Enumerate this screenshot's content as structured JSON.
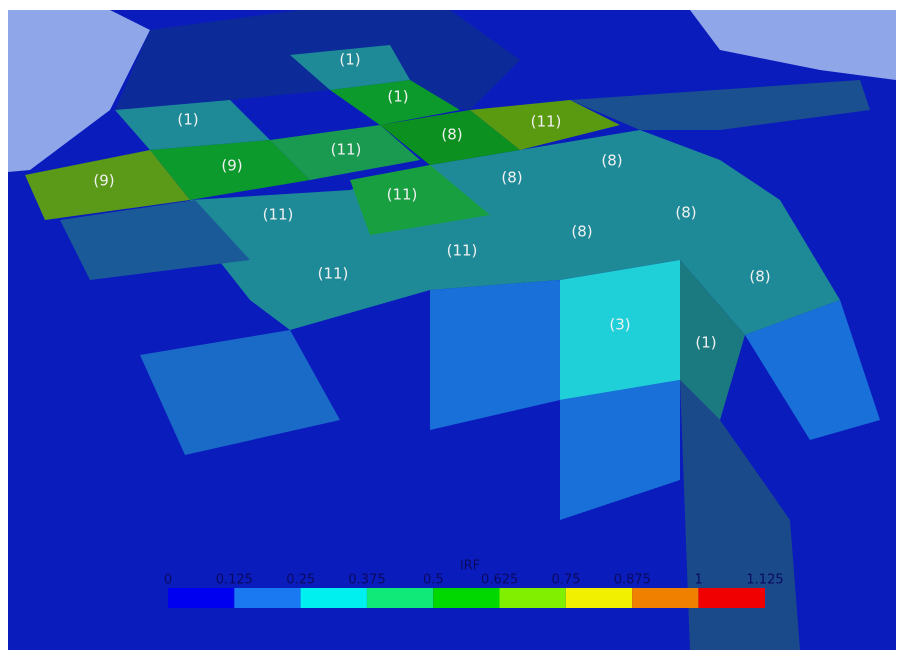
{
  "cells": [
    {
      "label": "(1)"
    },
    {
      "label": "(1)"
    },
    {
      "label": "(1)"
    },
    {
      "label": "(8)"
    },
    {
      "label": "(11)"
    },
    {
      "label": "(9)"
    },
    {
      "label": "(9)"
    },
    {
      "label": "(11)"
    },
    {
      "label": "(8)"
    },
    {
      "label": "(8)"
    },
    {
      "label": "(11)"
    },
    {
      "label": "(11)"
    },
    {
      "label": "(8)"
    },
    {
      "label": "(8)"
    },
    {
      "label": "(11)"
    },
    {
      "label": "(11)"
    },
    {
      "label": "(8)"
    },
    {
      "label": "(3)"
    },
    {
      "label": "(1)"
    }
  ],
  "legend": {
    "title": "IRF",
    "labels": [
      "0",
      "0.125",
      "0.25",
      "0.375",
      "0.5",
      "0.625",
      "0.75",
      "0.875",
      "1",
      "1.125"
    ]
  }
}
